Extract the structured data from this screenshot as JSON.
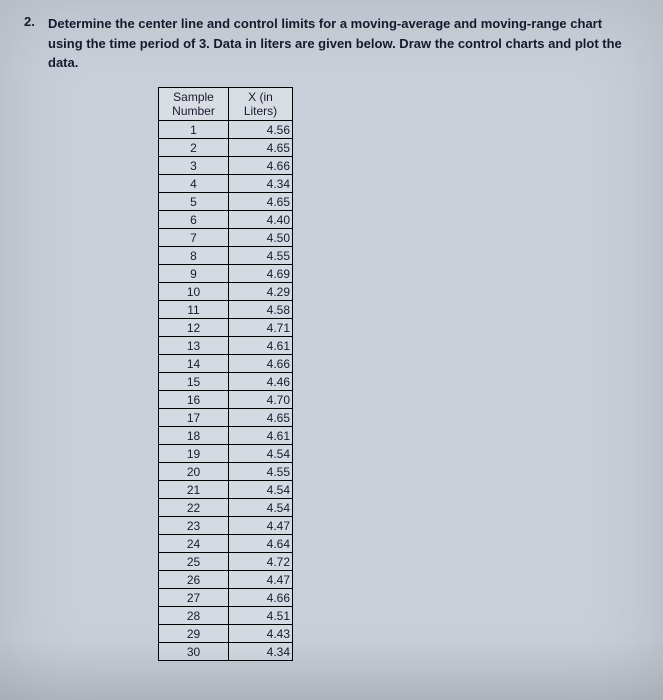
{
  "question": {
    "number": "2.",
    "text": "Determine the center line and control limits for a moving-average and moving-range chart using the time period of 3.  Data in liters are given below.  Draw the control charts and plot the data."
  },
  "table": {
    "headers": {
      "col1_line1": "Sample",
      "col1_line2": "Number",
      "col2_line1": "X (in",
      "col2_line2": "Liters)"
    },
    "rows": [
      {
        "n": "1",
        "x": "4.56"
      },
      {
        "n": "2",
        "x": "4.65"
      },
      {
        "n": "3",
        "x": "4.66"
      },
      {
        "n": "4",
        "x": "4.34"
      },
      {
        "n": "5",
        "x": "4.65"
      },
      {
        "n": "6",
        "x": "4.40"
      },
      {
        "n": "7",
        "x": "4.50"
      },
      {
        "n": "8",
        "x": "4.55"
      },
      {
        "n": "9",
        "x": "4.69"
      },
      {
        "n": "10",
        "x": "4.29"
      },
      {
        "n": "11",
        "x": "4.58"
      },
      {
        "n": "12",
        "x": "4.71"
      },
      {
        "n": "13",
        "x": "4.61"
      },
      {
        "n": "14",
        "x": "4.66"
      },
      {
        "n": "15",
        "x": "4.46"
      },
      {
        "n": "16",
        "x": "4.70"
      },
      {
        "n": "17",
        "x": "4.65"
      },
      {
        "n": "18",
        "x": "4.61"
      },
      {
        "n": "19",
        "x": "4.54"
      },
      {
        "n": "20",
        "x": "4.55"
      },
      {
        "n": "21",
        "x": "4.54"
      },
      {
        "n": "22",
        "x": "4.54"
      },
      {
        "n": "23",
        "x": "4.47"
      },
      {
        "n": "24",
        "x": "4.64"
      },
      {
        "n": "25",
        "x": "4.72"
      },
      {
        "n": "26",
        "x": "4.47"
      },
      {
        "n": "27",
        "x": "4.66"
      },
      {
        "n": "28",
        "x": "4.51"
      },
      {
        "n": "29",
        "x": "4.43"
      },
      {
        "n": "30",
        "x": "4.34"
      }
    ]
  },
  "styling": {
    "background_color": "#c8cfd8",
    "text_color": "#1a1a2e",
    "border_color": "#000000",
    "table_bg": "#d4dae2",
    "question_fontsize": 13,
    "table_fontsize": 12
  }
}
